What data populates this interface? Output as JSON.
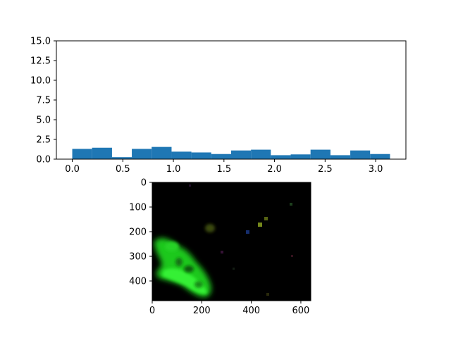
{
  "chart_data": [
    {
      "type": "bar",
      "title": "",
      "xlabel": "",
      "ylabel": "",
      "bin_edges": [
        0.0,
        0.196,
        0.393,
        0.589,
        0.785,
        0.982,
        1.178,
        1.374,
        1.571,
        1.767,
        1.963,
        2.16,
        2.356,
        2.553,
        2.749,
        2.945,
        3.142
      ],
      "values": [
        1.3,
        1.45,
        0.25,
        1.3,
        1.55,
        0.95,
        0.85,
        0.65,
        1.1,
        1.2,
        0.5,
        0.6,
        1.2,
        0.5,
        1.1,
        0.65
      ],
      "xlim": [
        -0.157,
        3.299
      ],
      "ylim": [
        0,
        15
      ],
      "x_ticks": [
        0.0,
        0.5,
        1.0,
        1.5,
        2.0,
        2.5,
        3.0
      ],
      "x_tick_labels": [
        "0.0",
        "0.5",
        "1.0",
        "1.5",
        "2.0",
        "2.5",
        "3.0"
      ],
      "y_ticks": [
        0.0,
        2.5,
        5.0,
        7.5,
        10.0,
        12.5,
        15.0
      ],
      "y_tick_labels": [
        "0.0",
        "2.5",
        "5.0",
        "7.5",
        "10.0",
        "12.5",
        "15.0"
      ],
      "bar_color": "#1f77b4",
      "grid": false
    },
    {
      "type": "image",
      "title": "",
      "xlim": [
        0,
        640
      ],
      "ylim": [
        480,
        0
      ],
      "x_ticks": [
        0,
        200,
        400,
        600
      ],
      "x_tick_labels": [
        "0",
        "200",
        "400",
        "600"
      ],
      "y_ticks": [
        0,
        100,
        200,
        300,
        400
      ],
      "y_tick_labels": [
        "0",
        "100",
        "200",
        "300",
        "400"
      ],
      "background_color": "#000000",
      "blob_color": "#22dd22",
      "grid": false
    }
  ]
}
